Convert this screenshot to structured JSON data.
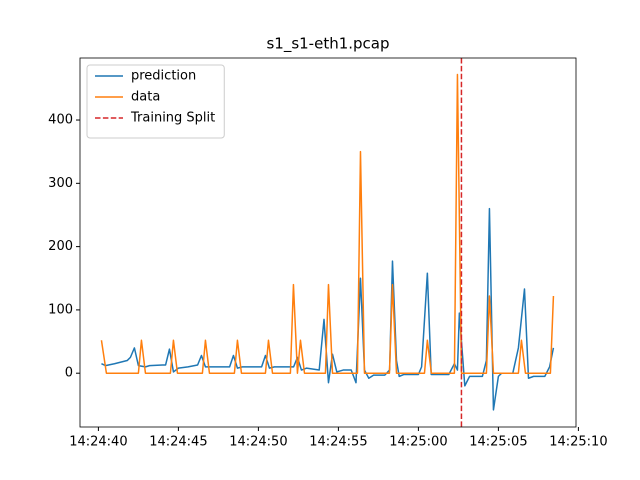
{
  "chart_data": {
    "type": "line",
    "title": "s1_s1-eth1.pcap",
    "xlim": [
      38.85,
      69.85
    ],
    "xticks": [
      {
        "value": 40,
        "label": "14:24:40"
      },
      {
        "value": 45,
        "label": "14:24:45"
      },
      {
        "value": 50,
        "label": "14:24:50"
      },
      {
        "value": 55,
        "label": "14:24:55"
      },
      {
        "value": 60,
        "label": "14:25:00"
      },
      {
        "value": 65,
        "label": "14:25:05"
      },
      {
        "value": 70,
        "label": "14:25:10"
      }
    ],
    "ylim": [
      -85,
      498
    ],
    "yticks": [
      0,
      100,
      200,
      300,
      400
    ],
    "legend": "upper left",
    "series": [
      {
        "name": "prediction",
        "color": "#1f77b4",
        "x": [
          40.19,
          40.44,
          41.0,
          41.8,
          42.0,
          42.25,
          42.5,
          42.94,
          43.2,
          44.0,
          44.2,
          44.44,
          44.69,
          45.0,
          45.6,
          46.2,
          46.44,
          46.69,
          47.0,
          48.2,
          48.44,
          48.69,
          49.0,
          50.2,
          50.44,
          50.69,
          51.0,
          52.2,
          52.44,
          52.69,
          53.0,
          53.8,
          54.1,
          54.38,
          54.63,
          54.9,
          55.3,
          55.8,
          56.1,
          56.38,
          56.63,
          56.9,
          57.2,
          57.9,
          58.2,
          58.38,
          58.63,
          58.8,
          59.1,
          60.0,
          60.2,
          60.56,
          60.8,
          61.1,
          61.9,
          62.25,
          62.44,
          62.56,
          62.9,
          63.2,
          64.0,
          64.25,
          64.44,
          64.69,
          65.0,
          65.2,
          65.9,
          66.25,
          66.63,
          66.88,
          67.2,
          67.9,
          68.2,
          68.44
        ],
        "values": [
          15,
          12,
          15,
          20,
          25,
          40,
          12,
          10,
          12,
          13,
          13,
          38,
          2,
          8,
          10,
          13,
          28,
          10,
          10,
          10,
          28,
          8,
          10,
          10,
          28,
          8,
          10,
          10,
          25,
          5,
          8,
          5,
          85,
          -15,
          30,
          2,
          5,
          5,
          -15,
          150,
          5,
          -8,
          -3,
          -3,
          5,
          177,
          20,
          -5,
          -2,
          -2,
          10,
          158,
          -2,
          -2,
          -2,
          15,
          5,
          95,
          -20,
          -5,
          -5,
          20,
          260,
          -58,
          -5,
          0,
          0,
          40,
          133,
          -8,
          -5,
          -5,
          10,
          40
        ]
      },
      {
        "name": "data",
        "color": "#ff7f0e",
        "x": [
          40.19,
          40.5,
          42.5,
          42.69,
          42.94,
          44.5,
          44.69,
          44.94,
          46.5,
          46.69,
          46.94,
          48.5,
          48.69,
          48.94,
          50.44,
          50.63,
          50.88,
          52.0,
          52.19,
          52.44,
          52.63,
          52.88,
          54.19,
          54.38,
          54.63,
          56.19,
          56.38,
          56.63,
          58.19,
          58.38,
          58.63,
          60.38,
          60.56,
          60.81,
          62.25,
          62.44,
          62.69,
          64.25,
          64.44,
          64.69,
          66.25,
          66.44,
          66.69,
          68.25,
          68.44
        ],
        "values": [
          52,
          0,
          0,
          52,
          0,
          0,
          52,
          0,
          0,
          52,
          0,
          0,
          52,
          0,
          0,
          52,
          0,
          0,
          140,
          0,
          52,
          0,
          0,
          140,
          0,
          0,
          350,
          0,
          0,
          140,
          0,
          0,
          52,
          0,
          0,
          472,
          0,
          0,
          122,
          0,
          0,
          52,
          0,
          0,
          122
        ]
      }
    ],
    "vlines": [
      {
        "name": "Training Split",
        "x": 62.69,
        "color": "#d62728"
      }
    ]
  }
}
